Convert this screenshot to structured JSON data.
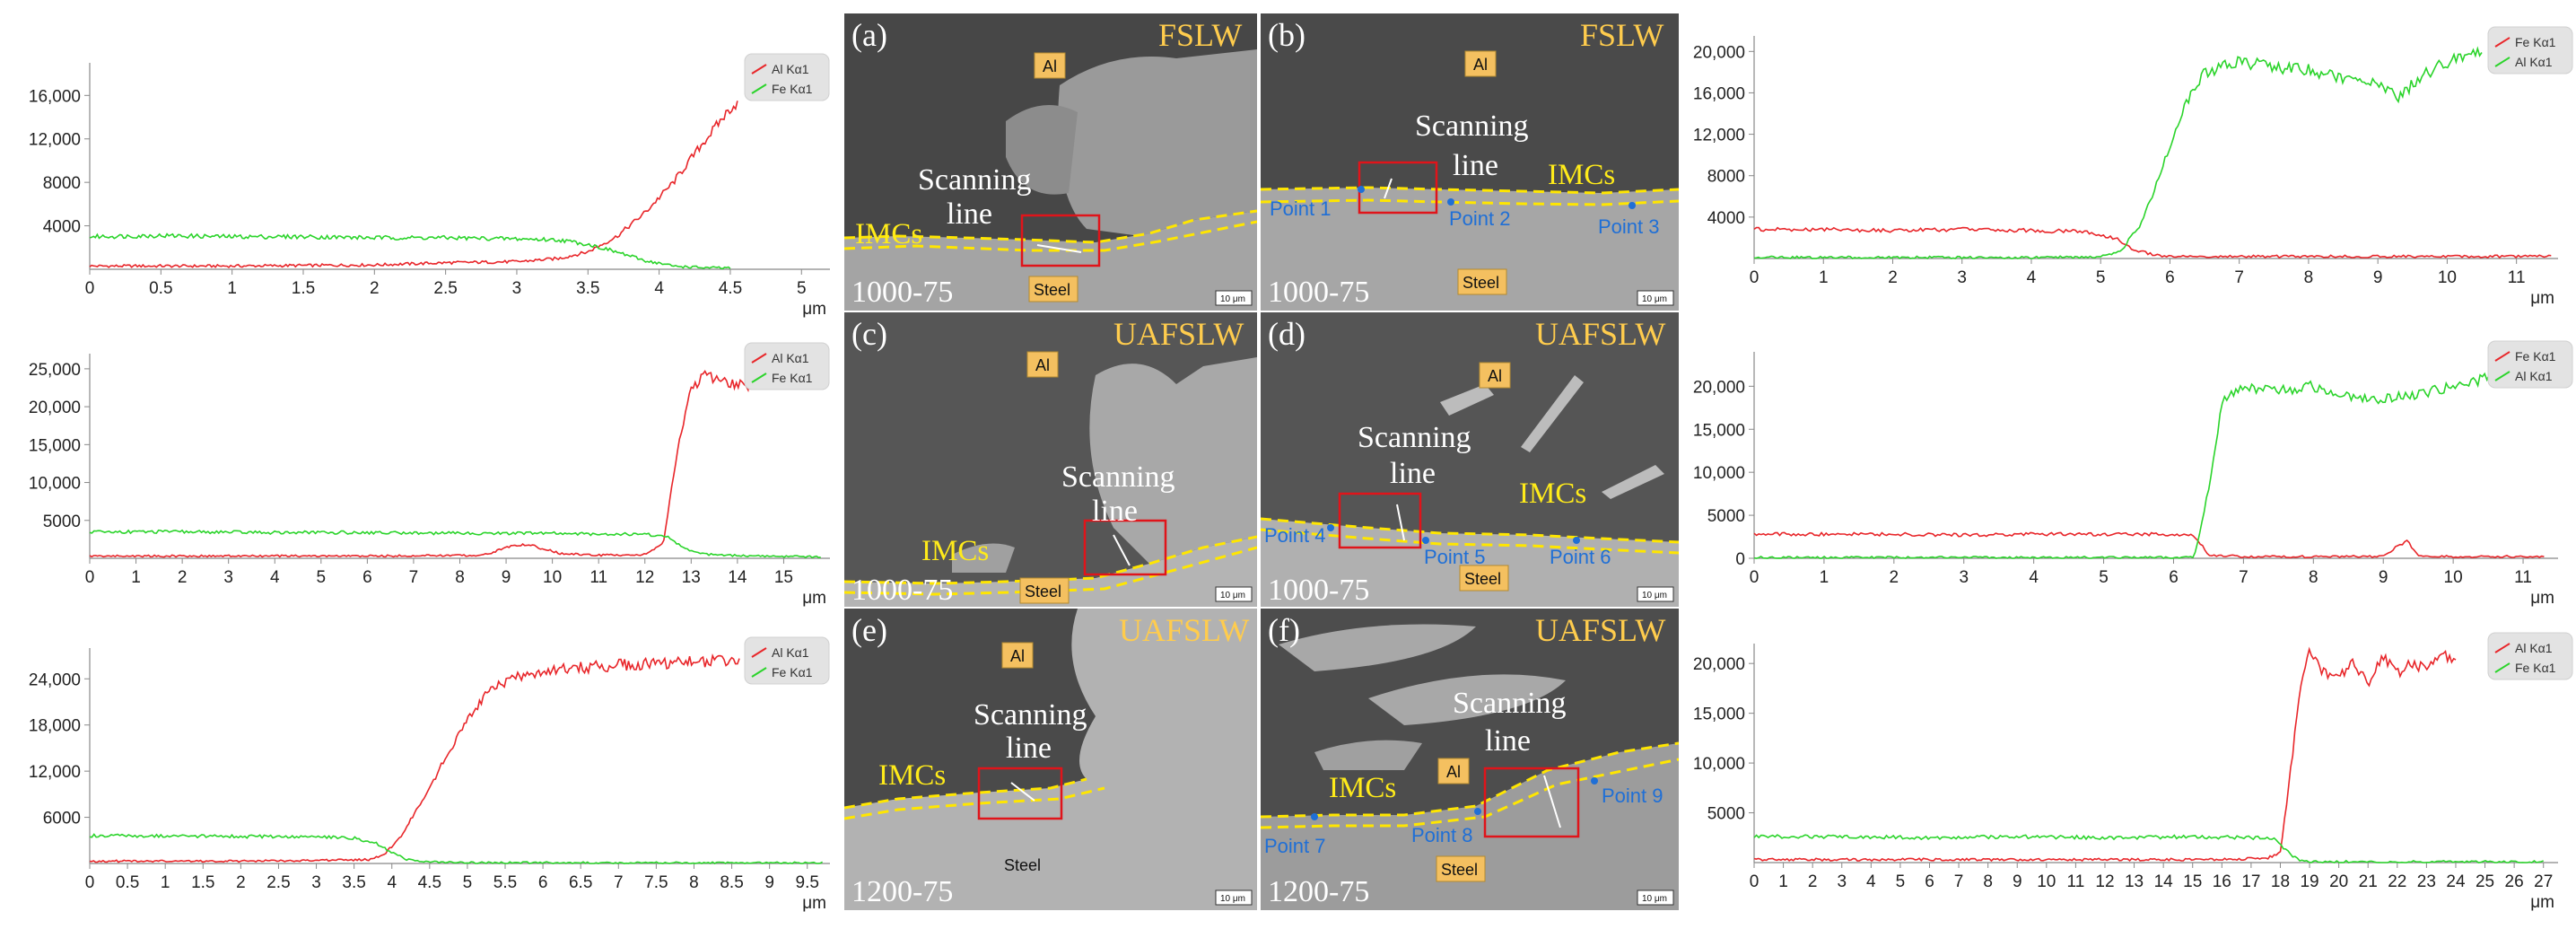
{
  "chart_data": [
    {
      "type": "line",
      "xlabel": "μm",
      "xlim": [
        0,
        5.2
      ],
      "ylim": [
        0,
        19000
      ],
      "xticks": [
        "0",
        "0.5",
        "1",
        "1.5",
        "2",
        "2.5",
        "3",
        "3.5",
        "4",
        "4.5",
        "5"
      ],
      "yticks": [
        "4000",
        "8000",
        "12,000",
        "16,000"
      ],
      "legend": [
        "Al Kα1",
        "Fe Kα1"
      ],
      "series": [
        {
          "name": "Al Kα1",
          "color": "#e8262a",
          "x": [
            0,
            1,
            2,
            2.5,
            3,
            3.3,
            3.5,
            3.7,
            3.9,
            4.1,
            4.3,
            4.5,
            4.55
          ],
          "y": [
            300,
            300,
            400,
            600,
            700,
            1000,
            1600,
            3000,
            5200,
            8000,
            11500,
            14800,
            15300
          ]
        },
        {
          "name": "Fe Kα1",
          "color": "#2bd42b",
          "x": [
            0,
            0.5,
            1,
            1.5,
            2,
            2.5,
            3,
            3.3,
            3.5,
            3.7,
            3.9,
            4.1,
            4.3,
            4.5
          ],
          "y": [
            3000,
            3100,
            3000,
            3000,
            2900,
            2900,
            2800,
            2700,
            2300,
            1600,
            800,
            300,
            150,
            100
          ]
        }
      ]
    },
    {
      "type": "line",
      "xlabel": "μm",
      "xlim": [
        0,
        16
      ],
      "ylim": [
        0,
        27000
      ],
      "xticks": [
        "0",
        "1",
        "2",
        "3",
        "4",
        "5",
        "6",
        "7",
        "8",
        "9",
        "10",
        "11",
        "12",
        "13",
        "14",
        "15"
      ],
      "yticks": [
        "5000",
        "10,000",
        "15,000",
        "20,000",
        "25,000"
      ],
      "legend": [
        "Al Kα1",
        "Fe Kα1"
      ],
      "series": [
        {
          "name": "Al Kα1",
          "color": "#e8262a",
          "x": [
            0,
            3,
            6,
            8.5,
            9.2,
            9.6,
            10.2,
            11,
            12,
            12.4,
            12.7,
            13,
            13.3,
            13.6,
            14,
            14.4
          ],
          "y": [
            300,
            300,
            300,
            400,
            1800,
            1600,
            600,
            400,
            500,
            2000,
            14000,
            22500,
            24000,
            23500,
            23000,
            22800
          ]
        },
        {
          "name": "Fe Kα1",
          "color": "#2bd42b",
          "x": [
            0,
            2,
            4,
            6,
            8,
            10,
            11,
            12,
            12.5,
            12.8,
            13.2,
            13.7,
            14.5,
            15.8
          ],
          "y": [
            3500,
            3500,
            3400,
            3400,
            3300,
            3300,
            3200,
            3200,
            2800,
            1500,
            600,
            400,
            300,
            200
          ]
        }
      ]
    },
    {
      "type": "line",
      "xlabel": "μm",
      "xlim": [
        0,
        9.8
      ],
      "ylim": [
        0,
        28000
      ],
      "xticks": [
        "0",
        "0.5",
        "1",
        "1.5",
        "2",
        "2.5",
        "3",
        "3.5",
        "4",
        "4.5",
        "5",
        "5.5",
        "6",
        "6.5",
        "7",
        "7.5",
        "8",
        "8.5",
        "9",
        "9.5"
      ],
      "yticks": [
        "6000",
        "12,000",
        "18,000",
        "24,000"
      ],
      "legend": [
        "Al Kα1",
        "Fe Kα1"
      ],
      "series": [
        {
          "name": "Al Kα1",
          "color": "#e8262a",
          "x": [
            0,
            1,
            2,
            3,
            3.7,
            3.9,
            4.1,
            4.3,
            4.5,
            4.7,
            4.9,
            5.1,
            5.3,
            5.6,
            6,
            6.5,
            7,
            7.5,
            8,
            8.6
          ],
          "y": [
            300,
            300,
            300,
            400,
            500,
            1200,
            3200,
            6500,
            10000,
            13500,
            17000,
            20000,
            22500,
            24000,
            25000,
            25500,
            25800,
            26000,
            26200,
            26300
          ]
        },
        {
          "name": "Fe Kα1",
          "color": "#2bd42b",
          "x": [
            0,
            1,
            2,
            3,
            3.5,
            3.8,
            4,
            4.2,
            4.5,
            5,
            6,
            8,
            9.7
          ],
          "y": [
            3600,
            3600,
            3500,
            3500,
            3300,
            2600,
            1400,
            500,
            200,
            100,
            100,
            80,
            80
          ]
        }
      ]
    },
    {
      "type": "line",
      "xlabel": "μm",
      "xlim": [
        0,
        11.6
      ],
      "ylim": [
        0,
        21500
      ],
      "xticks": [
        "0",
        "1",
        "2",
        "3",
        "4",
        "5",
        "6",
        "7",
        "8",
        "9",
        "10",
        "11"
      ],
      "yticks": [
        "4000",
        "8000",
        "12,000",
        "16,000",
        "20,000"
      ],
      "legend": [
        "Fe Kα1",
        "Al Kα1"
      ],
      "series": [
        {
          "name": "Fe Kα1",
          "color": "#e8262a",
          "x": [
            0,
            1,
            2,
            3,
            4,
            4.8,
            5.2,
            5.5,
            5.8,
            6.2,
            7,
            8,
            9,
            10,
            11,
            11.5
          ],
          "y": [
            2800,
            2800,
            2700,
            2800,
            2700,
            2600,
            2000,
            800,
            300,
            200,
            200,
            200,
            200,
            200,
            200,
            200
          ]
        },
        {
          "name": "Al Kα1",
          "color": "#2bd42b",
          "x": [
            0,
            2,
            4,
            5,
            5.3,
            5.6,
            5.9,
            6.2,
            6.5,
            7,
            7.5,
            8,
            8.5,
            9,
            9.3,
            9.6,
            10,
            10.5
          ],
          "y": [
            100,
            100,
            100,
            150,
            800,
            3500,
            9000,
            14500,
            18000,
            19000,
            18500,
            18200,
            17500,
            16800,
            15500,
            17500,
            19000,
            19800
          ]
        }
      ]
    },
    {
      "type": "line",
      "xlabel": "μm",
      "xlim": [
        0,
        11.5
      ],
      "ylim": [
        0,
        24000
      ],
      "xticks": [
        "0",
        "1",
        "2",
        "3",
        "4",
        "5",
        "6",
        "7",
        "8",
        "9",
        "10",
        "11"
      ],
      "yticks": [
        "0",
        "5000",
        "10,000",
        "15,000",
        "20,000"
      ],
      "legend": [
        "Fe Kα1",
        "Al Kα1"
      ],
      "series": [
        {
          "name": "Fe Kα1",
          "color": "#e8262a",
          "x": [
            0,
            1,
            2,
            3,
            4,
            5,
            6,
            6.3,
            6.5,
            7,
            8,
            9,
            9.2,
            9.35,
            9.5,
            10,
            11,
            11.3
          ],
          "y": [
            2800,
            2800,
            2800,
            2700,
            2800,
            2800,
            2800,
            2600,
            400,
            200,
            200,
            200,
            1400,
            2000,
            300,
            200,
            200,
            200
          ]
        },
        {
          "name": "Al Kα1",
          "color": "#2bd42b",
          "x": [
            0,
            2,
            4,
            6,
            6.3,
            6.5,
            6.7,
            7,
            7.5,
            8,
            8.5,
            9,
            9.5,
            10,
            10.5,
            11
          ],
          "y": [
            100,
            100,
            100,
            100,
            200,
            8000,
            18500,
            20000,
            19500,
            20000,
            19000,
            18500,
            19000,
            20000,
            21000,
            22000
          ]
        }
      ]
    },
    {
      "type": "line",
      "xlabel": "μm",
      "xlim": [
        0,
        27.5
      ],
      "ylim": [
        0,
        22000
      ],
      "xticks": [
        "0",
        "1",
        "2",
        "3",
        "4",
        "5",
        "6",
        "7",
        "8",
        "9",
        "10",
        "11",
        "12",
        "13",
        "14",
        "15",
        "16",
        "17",
        "18",
        "19",
        "20",
        "21",
        "22",
        "23",
        "24",
        "25",
        "26",
        "27"
      ],
      "yticks": [
        "5000",
        "10,000",
        "15,000",
        "20,000"
      ],
      "legend": [
        "Al Kα1",
        "Fe Kα1"
      ],
      "series": [
        {
          "name": "Al Kα1",
          "color": "#e8262a",
          "x": [
            0,
            5,
            10,
            15,
            17.5,
            18,
            18.3,
            18.7,
            19,
            19.5,
            20,
            20.5,
            21,
            21.5,
            22,
            22.5,
            23,
            23.5,
            24
          ],
          "y": [
            300,
            300,
            300,
            300,
            400,
            1000,
            8000,
            18000,
            21500,
            19000,
            18500,
            20000,
            18000,
            20500,
            19000,
            20000,
            19500,
            20500,
            20800
          ]
        },
        {
          "name": "Fe Kα1",
          "color": "#2bd42b",
          "x": [
            0,
            3,
            6,
            9,
            12,
            15,
            17,
            17.8,
            18.2,
            18.6,
            19,
            20,
            24,
            27
          ],
          "y": [
            2600,
            2600,
            2500,
            2600,
            2500,
            2600,
            2500,
            2400,
            1200,
            300,
            100,
            80,
            80,
            80
          ]
        }
      ]
    }
  ],
  "micrographs": [
    {
      "panel": "(a)",
      "process": "FSLW",
      "params": "1000-75",
      "labels": [
        "Al",
        "Scanning",
        "line",
        "IMCs",
        "Steel"
      ],
      "points": [],
      "scale": "10 μm"
    },
    {
      "panel": "(b)",
      "process": "FSLW",
      "params": "1000-75",
      "labels": [
        "Al",
        "Scanning",
        "line",
        "IMCs",
        "Steel"
      ],
      "points": [
        "Point 1",
        "Point 2",
        "Point 3"
      ],
      "scale": "10 μm"
    },
    {
      "panel": "(c)",
      "process": "UAFSLW",
      "params": "1000-75",
      "labels": [
        "Al",
        "Scanning",
        "line",
        "IMCs",
        "Steel"
      ],
      "points": [],
      "scale": "10 μm"
    },
    {
      "panel": "(d)",
      "process": "UAFSLW",
      "params": "1000-75",
      "labels": [
        "Al",
        "Scanning",
        "line",
        "IMCs",
        "Steel"
      ],
      "points": [
        "Point 4",
        "Point 5",
        "Point 6"
      ],
      "scale": "10 μm"
    },
    {
      "panel": "(e)",
      "process": "UAFSLW",
      "params": "1200-75",
      "labels": [
        "Al",
        "Scanning",
        "line",
        "IMCs",
        "Steel"
      ],
      "points": [],
      "scale": "10 μm"
    },
    {
      "panel": "(f)",
      "process": "UAFSLW",
      "params": "1200-75",
      "labels": [
        "Al",
        "Scanning",
        "line",
        "IMCs",
        "Steel"
      ],
      "points": [
        "Point 7",
        "Point 8",
        "Point 9"
      ],
      "scale": "10 μm"
    }
  ]
}
